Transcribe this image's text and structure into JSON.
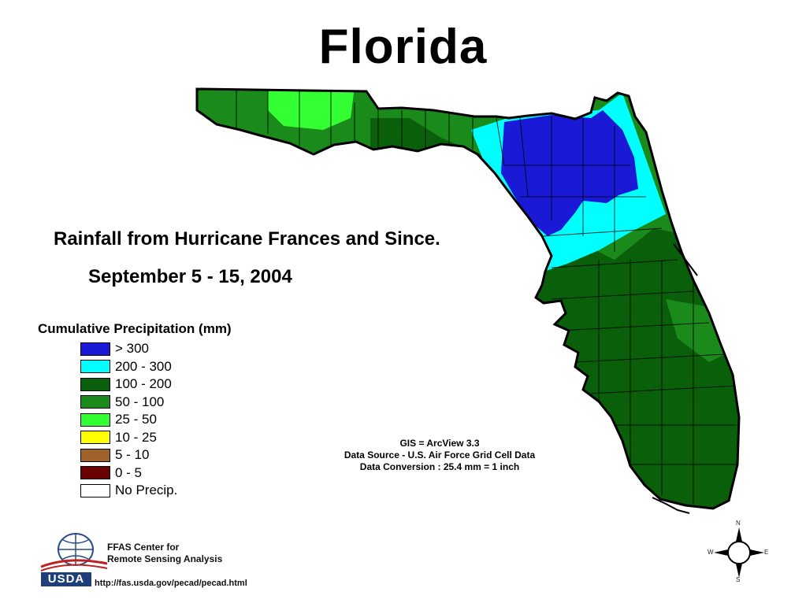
{
  "title": "Florida",
  "subtitle_line1": "Rainfall from Hurricane Frances and Since.",
  "subtitle_line2": "September 5 - 15, 2004",
  "legend": {
    "title": "Cumulative Precipitation (mm)",
    "items": [
      {
        "label": "> 300",
        "color": "#1a1ad6"
      },
      {
        "label": "200 - 300",
        "color": "#00ffff"
      },
      {
        "label": "100 - 200",
        "color": "#0a5f0a"
      },
      {
        "label": "50 - 100",
        "color": "#1a8a1a"
      },
      {
        "label": "25 - 50",
        "color": "#33ff33"
      },
      {
        "label": "10 - 25",
        "color": "#ffff00"
      },
      {
        "label": "5 - 10",
        "color": "#a0622d"
      },
      {
        "label": "0 - 5",
        "color": "#6b0000"
      },
      {
        "label": "No Precip.",
        "color": "#ffffff"
      }
    ]
  },
  "info": {
    "line1": "GIS = ArcView 3.3",
    "line2": "Data Source - U.S. Air Force Grid Cell Data",
    "line3": "Data Conversion : 25.4 mm = 1 inch"
  },
  "footer": {
    "org_line1": "FFAS Center for",
    "org_line2": "Remote Sensing Analysis",
    "usda": "USDA",
    "url": "http://fas.usda.gov/pecad/pecad.html"
  },
  "compass": {
    "n": "N",
    "s": "S",
    "e": "E",
    "w": "W"
  }
}
